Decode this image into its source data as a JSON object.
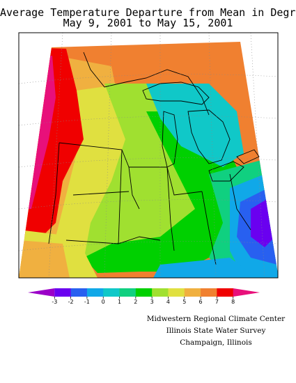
{
  "title": {
    "line1": "Average Temperature Departure from Mean in Degrees F",
    "line2": "May 9, 2001 to May 15, 2001"
  },
  "legend": {
    "ticks": [
      "-3",
      "-2",
      "-1",
      "0",
      "1",
      "2",
      "3",
      "4",
      "5",
      "6",
      "7",
      "8"
    ],
    "colors": [
      "#9b00c8",
      "#6a00f0",
      "#2860f0",
      "#10a8e8",
      "#10c8c8",
      "#10d080",
      "#00d000",
      "#a0e030",
      "#e0e040",
      "#f0b040",
      "#f08030",
      "#f00000",
      "#e8107a"
    ]
  },
  "credits": {
    "line1": "Midwestern Regional Climate Center",
    "line2": "Illinois State Water Survey",
    "line3": "Champaign, Illinois"
  }
}
